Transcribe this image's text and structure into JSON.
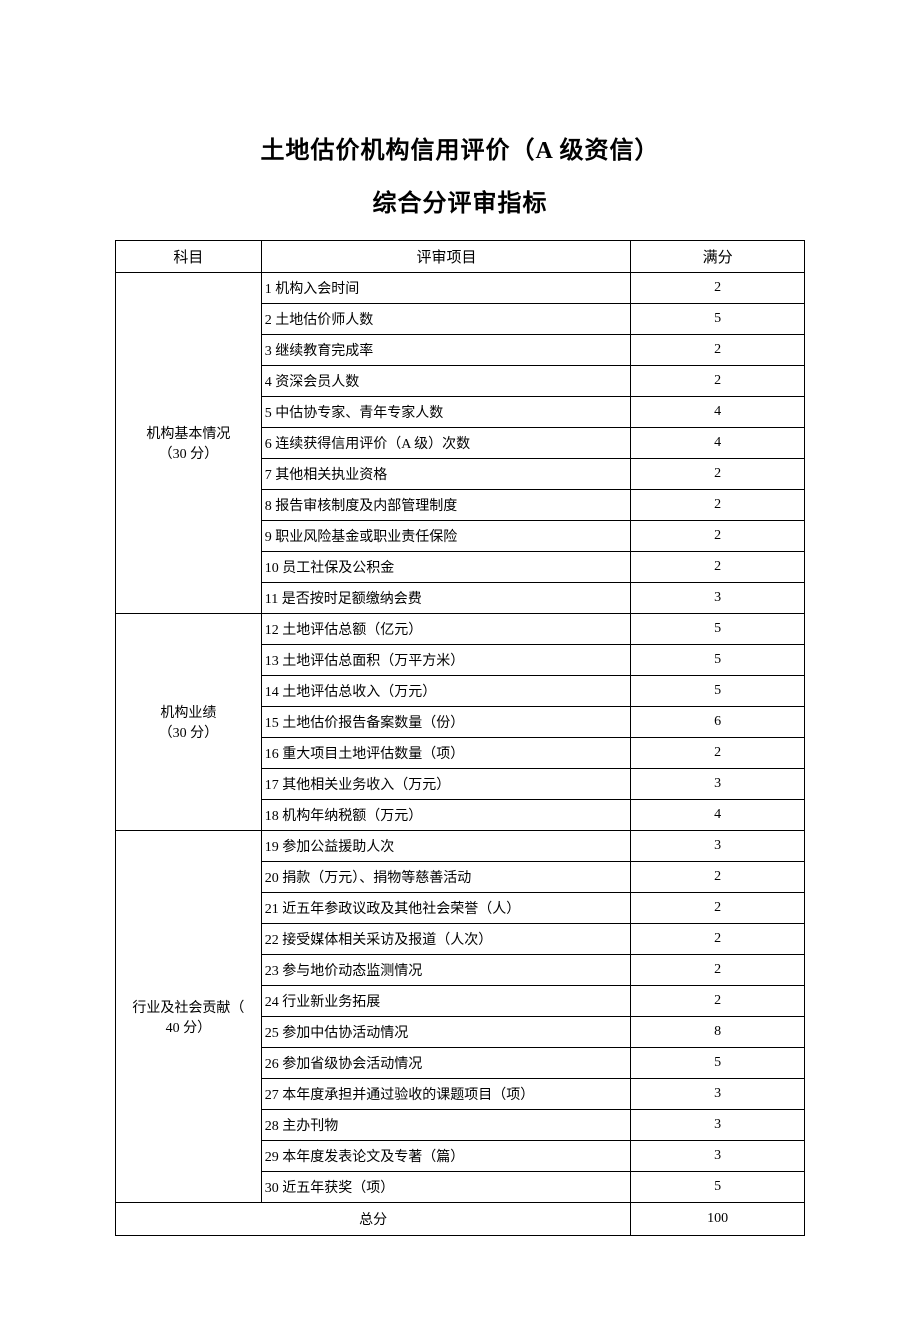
{
  "titles": {
    "line1": "土地估价机构信用评价（A 级资信）",
    "line2": "综合分评审指标"
  },
  "headers": {
    "subject": "科目",
    "item": "评审项目",
    "score": "满分"
  },
  "sections": [
    {
      "subject": "机构基本情况\n（30 分）",
      "rows": [
        {
          "item": "1 机构入会时间",
          "score": "2"
        },
        {
          "item": "2 土地估价师人数",
          "score": "5"
        },
        {
          "item": "3 继续教育完成率",
          "score": "2"
        },
        {
          "item": "4 资深会员人数",
          "score": "2"
        },
        {
          "item": "5 中估协专家、青年专家人数",
          "score": "4"
        },
        {
          "item": "6 连续获得信用评价（A 级）次数",
          "score": "4"
        },
        {
          "item": "7 其他相关执业资格",
          "score": "2"
        },
        {
          "item": "8 报告审核制度及内部管理制度",
          "score": "2"
        },
        {
          "item": "9 职业风险基金或职业责任保险",
          "score": "2"
        },
        {
          "item": "10 员工社保及公积金",
          "score": "2"
        },
        {
          "item": "11 是否按时足额缴纳会费",
          "score": "3"
        }
      ]
    },
    {
      "subject": "机构业绩\n（30 分）",
      "rows": [
        {
          "item": "12 土地评估总额（亿元）",
          "score": "5"
        },
        {
          "item": "13 土地评估总面积（万平方米）",
          "score": "5"
        },
        {
          "item": "14 土地评估总收入（万元）",
          "score": "5"
        },
        {
          "item": "15 土地估价报告备案数量（份）",
          "score": "6"
        },
        {
          "item": "16 重大项目土地评估数量（项）",
          "score": "2"
        },
        {
          "item": "17 其他相关业务收入（万元）",
          "score": "3"
        },
        {
          "item": "18 机构年纳税额（万元）",
          "score": "4"
        }
      ]
    },
    {
      "subject": "行业及社会贡献（\n40 分）",
      "rows": [
        {
          "item": "19 参加公益援助人次",
          "score": "3"
        },
        {
          "item": "20 捐款（万元）、捐物等慈善活动",
          "score": "2"
        },
        {
          "item": "21 近五年参政议政及其他社会荣誉（人）",
          "score": "2"
        },
        {
          "item": "22 接受媒体相关采访及报道（人次）",
          "score": "2"
        },
        {
          "item": "23 参与地价动态监测情况",
          "score": "2"
        },
        {
          "item": "24 行业新业务拓展",
          "score": "2"
        },
        {
          "item": "25 参加中估协活动情况",
          "score": "8"
        },
        {
          "item": "26 参加省级协会活动情况",
          "score": "5"
        },
        {
          "item": "27 本年度承担并通过验收的课题项目（项）",
          "score": "3"
        },
        {
          "item": "28 主办刊物",
          "score": "3"
        },
        {
          "item": "29 本年度发表论文及专著（篇）",
          "score": "3"
        },
        {
          "item": "30 近五年获奖（项）",
          "score": "5"
        }
      ]
    }
  ],
  "total": {
    "label": "总分",
    "value": "100"
  }
}
